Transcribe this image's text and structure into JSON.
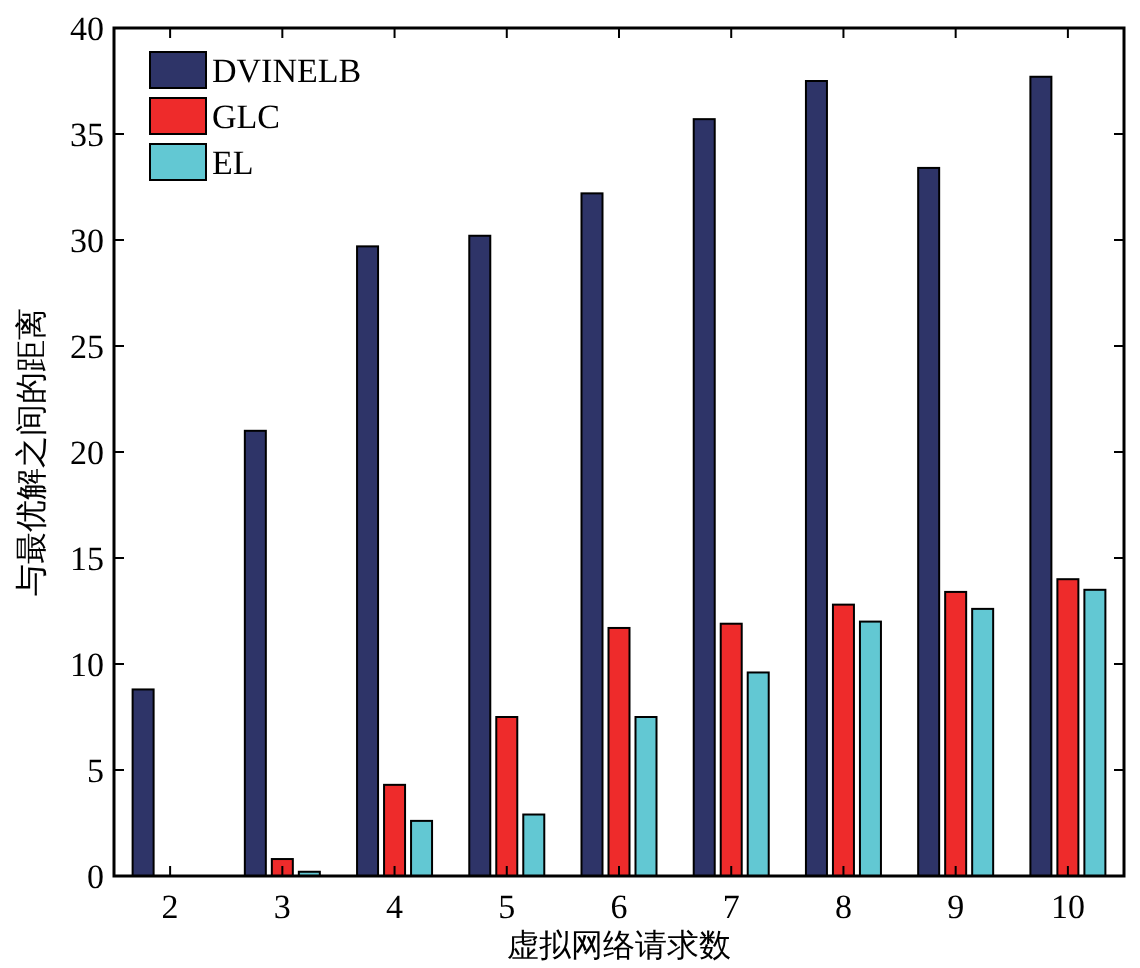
{
  "chart_data": {
    "type": "bar",
    "xlabel": "虚拟网络请求数",
    "ylabel": "与最优解之间的距离",
    "categories": [
      "2",
      "3",
      "4",
      "5",
      "6",
      "7",
      "8",
      "9",
      "10"
    ],
    "series": [
      {
        "name": "DVINELB",
        "color": "#2e3468",
        "values": [
          8.8,
          21,
          29.7,
          30.2,
          32.2,
          35.7,
          37.5,
          33.4,
          37.7
        ]
      },
      {
        "name": "GLC",
        "color": "#ee2b2b",
        "values": [
          0,
          0.8,
          4.3,
          7.5,
          11.7,
          11.9,
          12.8,
          13.4,
          14.0
        ]
      },
      {
        "name": "EL",
        "color": "#62c8d3",
        "values": [
          0,
          0.2,
          2.6,
          2.9,
          7.5,
          9.6,
          12.0,
          12.6,
          13.5
        ]
      }
    ],
    "ylim": [
      0,
      40
    ],
    "yticks": [
      0,
      5,
      10,
      15,
      20,
      25,
      30,
      35,
      40
    ],
    "legend": "top left",
    "grid": false
  }
}
